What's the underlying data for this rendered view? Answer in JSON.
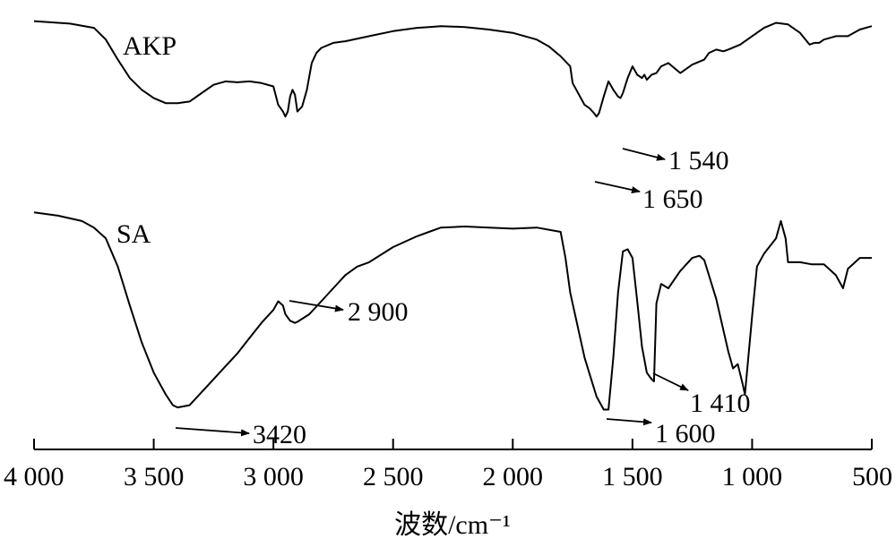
{
  "chart_data": {
    "type": "line",
    "title": "",
    "xlabel": "波数/cm⁻¹",
    "ylabel": "",
    "x_reversed": true,
    "xlim": [
      4000,
      500
    ],
    "ylim": [
      0,
      1
    ],
    "grid": false,
    "legend": "none",
    "x_ticks": [
      4000,
      3500,
      3000,
      2500,
      2000,
      1500,
      1000,
      500
    ],
    "x_tick_labels": [
      "4 000",
      "3 500",
      "3 000",
      "2 500",
      "2 000",
      "1 500",
      "1 000",
      "500"
    ],
    "series": [
      {
        "name": "AKP",
        "x": [
          4000,
          3850,
          3750,
          3700,
          3650,
          3600,
          3550,
          3500,
          3450,
          3400,
          3350,
          3300,
          3250,
          3200,
          3150,
          3100,
          3050,
          3000,
          2980,
          2960,
          2950,
          2940,
          2930,
          2920,
          2910,
          2900,
          2880,
          2860,
          2850,
          2840,
          2820,
          2800,
          2750,
          2700,
          2600,
          2500,
          2400,
          2350,
          2300,
          2200,
          2100,
          2000,
          1900,
          1850,
          1800,
          1760,
          1750,
          1700,
          1680,
          1660,
          1650,
          1640,
          1620,
          1600,
          1580,
          1560,
          1550,
          1540,
          1520,
          1500,
          1480,
          1460,
          1450,
          1440,
          1420,
          1400,
          1380,
          1350,
          1300,
          1250,
          1200,
          1180,
          1150,
          1120,
          1100,
          1050,
          1000,
          950,
          900,
          850,
          800,
          760,
          740,
          720,
          700,
          650,
          600,
          550,
          500
        ],
        "values": [
          0.97,
          0.955,
          0.93,
          0.86,
          0.74,
          0.63,
          0.56,
          0.51,
          0.48,
          0.48,
          0.49,
          0.54,
          0.59,
          0.61,
          0.605,
          0.61,
          0.6,
          0.58,
          0.47,
          0.43,
          0.4,
          0.43,
          0.52,
          0.56,
          0.53,
          0.43,
          0.46,
          0.56,
          0.64,
          0.72,
          0.78,
          0.81,
          0.84,
          0.85,
          0.88,
          0.91,
          0.93,
          0.935,
          0.94,
          0.935,
          0.92,
          0.9,
          0.86,
          0.82,
          0.76,
          0.7,
          0.6,
          0.47,
          0.45,
          0.42,
          0.4,
          0.42,
          0.52,
          0.61,
          0.56,
          0.52,
          0.51,
          0.54,
          0.63,
          0.7,
          0.65,
          0.63,
          0.65,
          0.62,
          0.65,
          0.66,
          0.7,
          0.72,
          0.66,
          0.71,
          0.74,
          0.78,
          0.8,
          0.79,
          0.8,
          0.83,
          0.88,
          0.93,
          0.96,
          0.95,
          0.9,
          0.83,
          0.84,
          0.84,
          0.86,
          0.88,
          0.88,
          0.92,
          0.94
        ]
      },
      {
        "name": "SA",
        "x": [
          4000,
          3900,
          3800,
          3750,
          3700,
          3650,
          3600,
          3550,
          3500,
          3450,
          3420,
          3400,
          3350,
          3300,
          3250,
          3200,
          3150,
          3100,
          3050,
          3000,
          2980,
          2960,
          2950,
          2930,
          2910,
          2900,
          2850,
          2800,
          2750,
          2700,
          2650,
          2600,
          2500,
          2400,
          2350,
          2300,
          2200,
          2100,
          2000,
          1900,
          1800,
          1780,
          1760,
          1700,
          1650,
          1620,
          1600,
          1580,
          1560,
          1540,
          1520,
          1500,
          1480,
          1460,
          1440,
          1420,
          1410,
          1400,
          1380,
          1350,
          1300,
          1250,
          1220,
          1200,
          1150,
          1100,
          1080,
          1060,
          1040,
          1030,
          1000,
          980,
          950,
          900,
          880,
          860,
          850,
          800,
          750,
          700,
          650,
          620,
          600,
          550,
          500
        ],
        "values": [
          0.97,
          0.955,
          0.93,
          0.9,
          0.85,
          0.72,
          0.54,
          0.37,
          0.23,
          0.13,
          0.08,
          0.07,
          0.08,
          0.14,
          0.2,
          0.26,
          0.32,
          0.39,
          0.46,
          0.52,
          0.56,
          0.54,
          0.5,
          0.47,
          0.46,
          0.465,
          0.5,
          0.56,
          0.62,
          0.68,
          0.72,
          0.74,
          0.81,
          0.86,
          0.88,
          0.9,
          0.905,
          0.9,
          0.895,
          0.9,
          0.88,
          0.76,
          0.6,
          0.3,
          0.12,
          0.06,
          0.06,
          0.3,
          0.6,
          0.79,
          0.8,
          0.76,
          0.56,
          0.35,
          0.23,
          0.2,
          0.19,
          0.55,
          0.64,
          0.62,
          0.7,
          0.76,
          0.77,
          0.75,
          0.57,
          0.33,
          0.25,
          0.27,
          0.18,
          0.13,
          0.49,
          0.72,
          0.78,
          0.85,
          0.93,
          0.85,
          0.74,
          0.74,
          0.73,
          0.73,
          0.68,
          0.62,
          0.71,
          0.76,
          0.76
        ]
      }
    ],
    "annotations": [
      {
        "series": "AKP",
        "text": "1 540"
      },
      {
        "series": "AKP",
        "text": "1 650"
      },
      {
        "series": "SA",
        "text": "2 900"
      },
      {
        "series": "SA",
        "text": "3420"
      },
      {
        "series": "SA",
        "text": "1 600"
      },
      {
        "series": "SA",
        "text": "1 410"
      }
    ]
  }
}
